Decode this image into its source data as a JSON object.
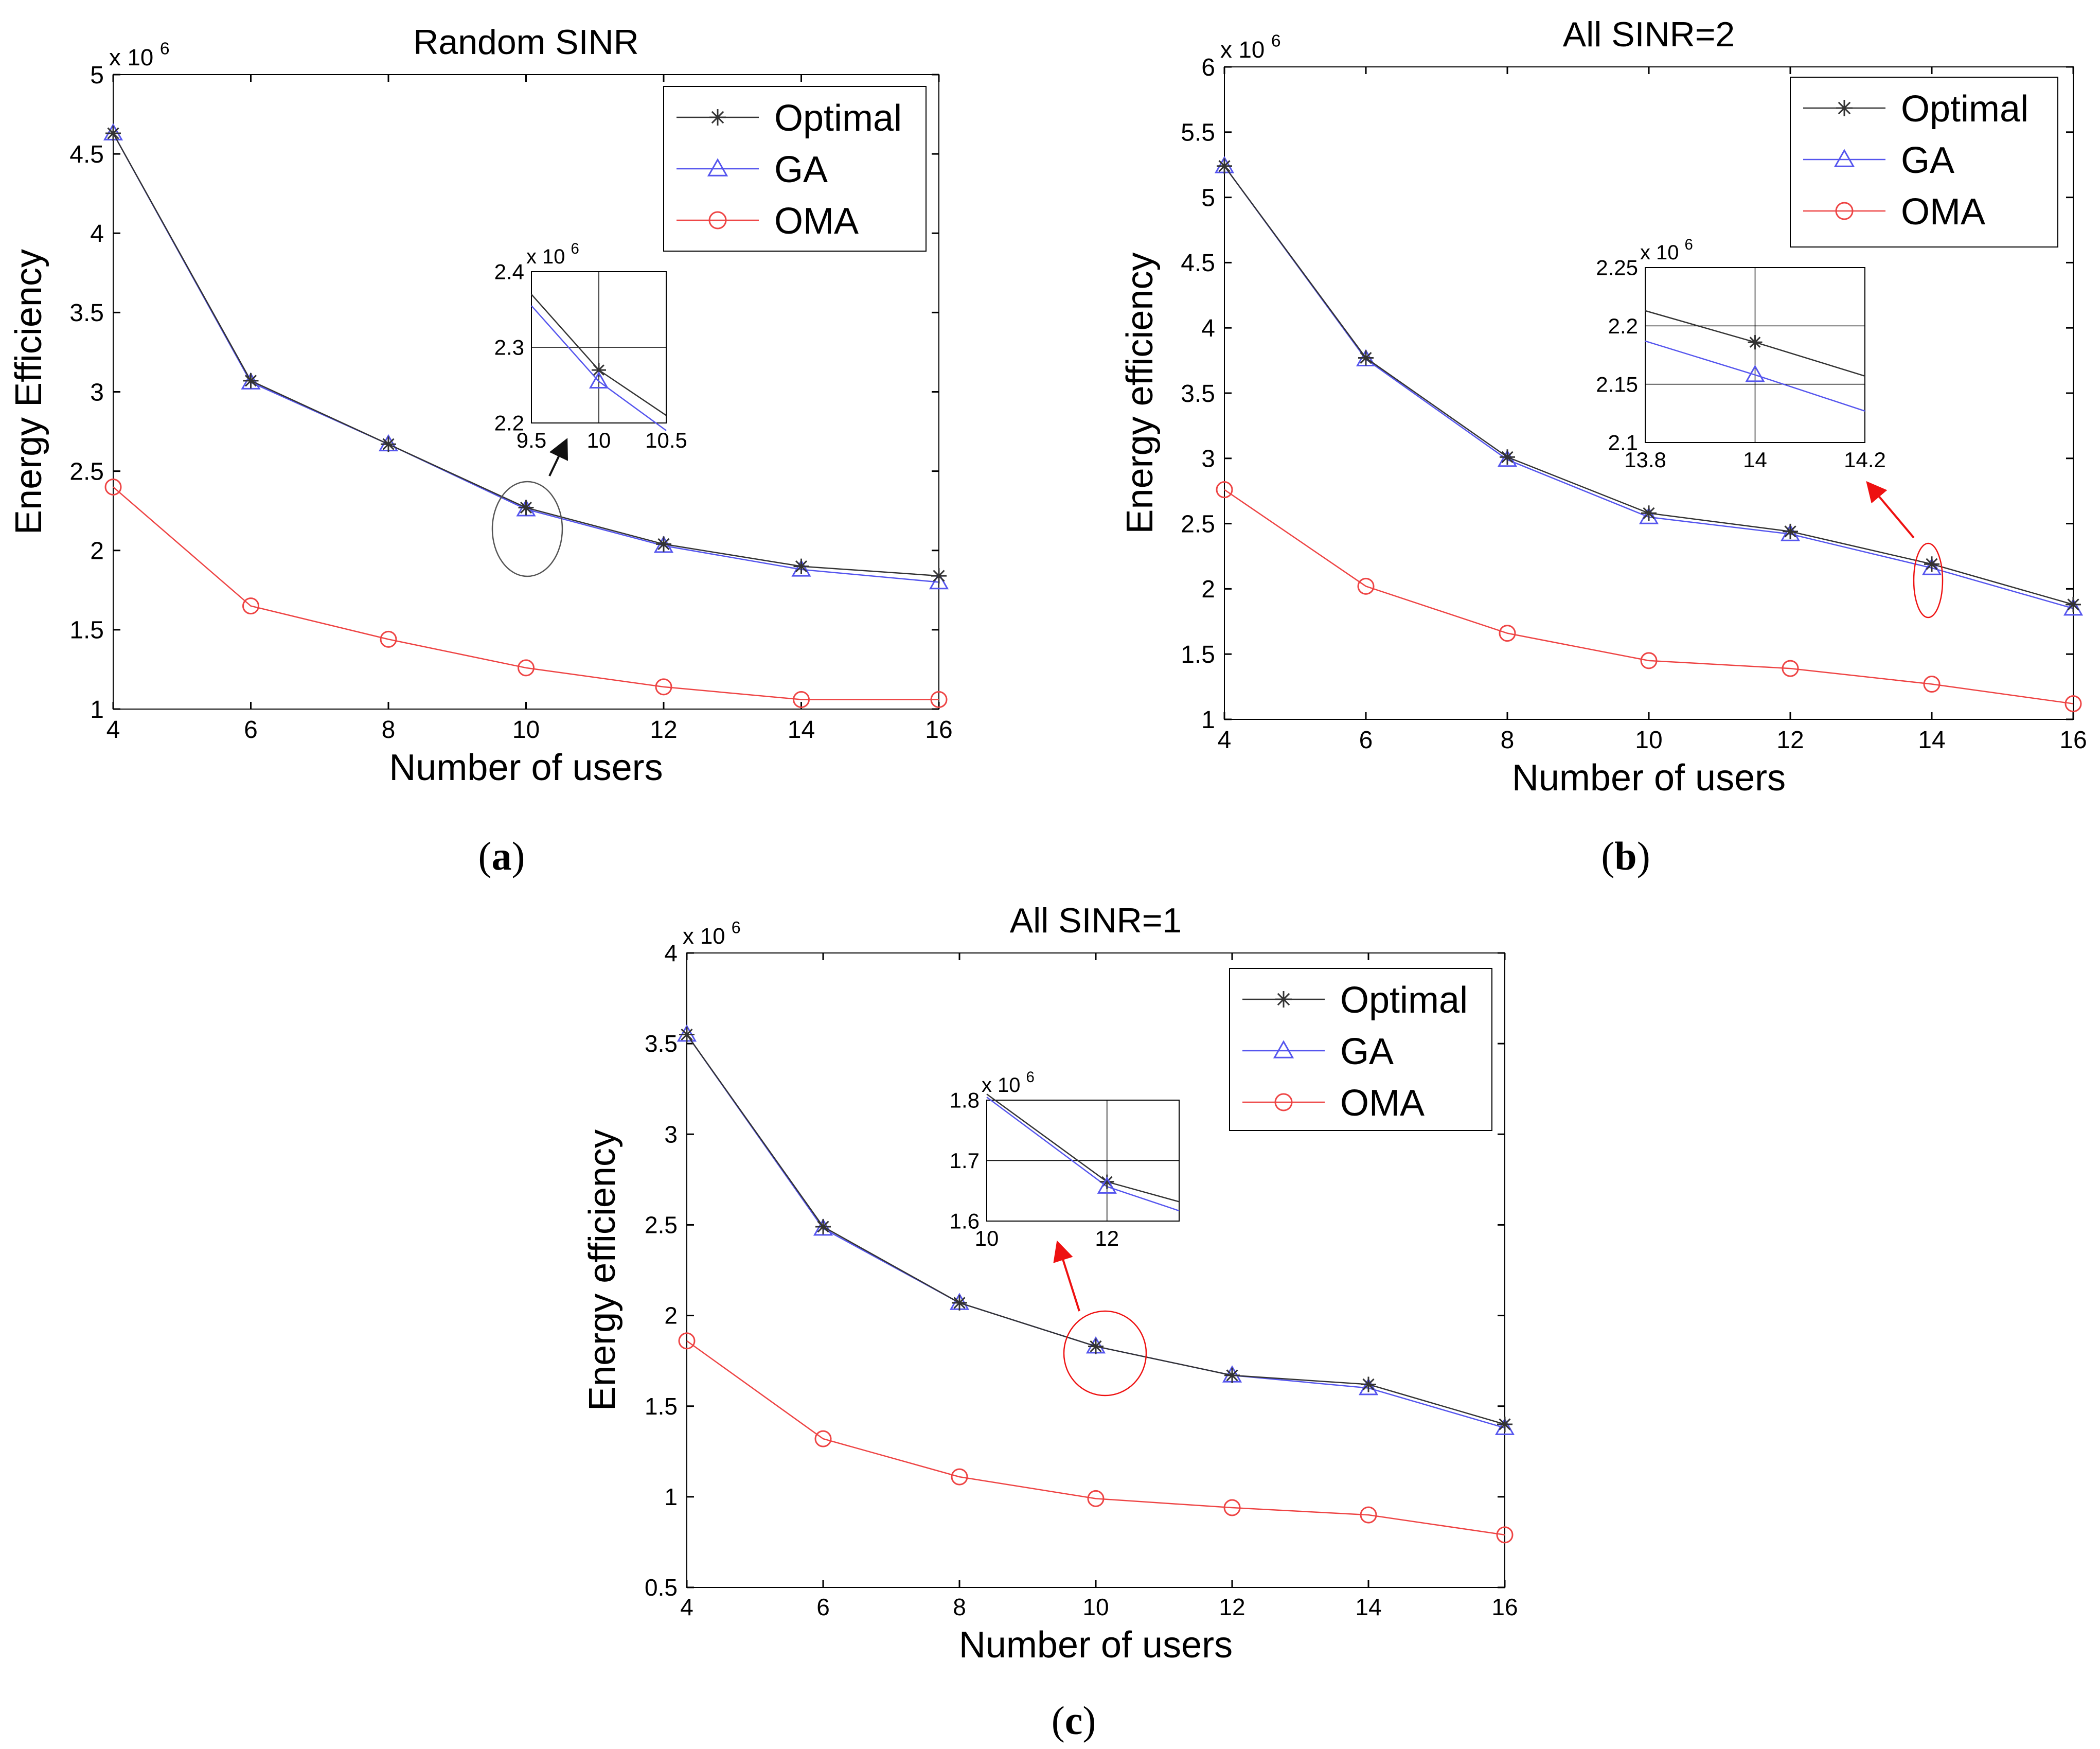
{
  "figure": {
    "captions": [
      "(a)",
      "(b)",
      "(c)"
    ],
    "caption_letters": [
      "a",
      "b",
      "c"
    ]
  },
  "colors": {
    "optimal": "#333333",
    "ga": "#5555ee",
    "oma": "#ee4444",
    "axis": "#000000",
    "arrow_black": "#111111",
    "arrow_red": "#ee1111"
  },
  "chart_data": [
    {
      "type": "line",
      "title": "Random SINR",
      "xlabel": "Number of users",
      "ylabel": "Energy Efficiency",
      "y_exponent_label": "x 10",
      "y_exponent_power": "6",
      "x": [
        4,
        6,
        8,
        10,
        12,
        14,
        16
      ],
      "xlim": [
        4,
        16
      ],
      "ylim": [
        1,
        5
      ],
      "xticks": [
        "4",
        "6",
        "8",
        "10",
        "12",
        "14",
        "16"
      ],
      "yticks": [
        "1",
        "1.5",
        "2",
        "2.5",
        "3",
        "3.5",
        "4",
        "4.5",
        "5"
      ],
      "series": [
        {
          "name": "Optimal",
          "marker": "star",
          "values": [
            4.63,
            3.07,
            2.67,
            2.27,
            2.04,
            1.9,
            1.84
          ]
        },
        {
          "name": "GA",
          "marker": "triangle",
          "values": [
            4.63,
            3.06,
            2.67,
            2.26,
            2.03,
            1.88,
            1.8
          ]
        },
        {
          "name": "OMA",
          "marker": "circle",
          "values": [
            2.4,
            1.65,
            1.44,
            1.26,
            1.14,
            1.06,
            1.06
          ]
        }
      ],
      "legend": [
        "Optimal",
        "GA",
        "OMA"
      ],
      "inset": {
        "xlim": [
          9.5,
          10.5
        ],
        "ylim": [
          2.2,
          2.4
        ],
        "xticks": [
          "9.5",
          "10",
          "10.5"
        ],
        "yticks": [
          "2.2",
          "2.3",
          "2.4"
        ],
        "y_exponent_label": "x 10",
        "y_exponent_power": "6",
        "optimal": [
          [
            9.5,
            2.37
          ],
          [
            10,
            2.27
          ],
          [
            10.5,
            2.21
          ]
        ],
        "ga": [
          [
            9.5,
            2.355
          ],
          [
            10,
            2.255
          ],
          [
            10.5,
            2.19
          ]
        ]
      },
      "callout": {
        "x": 10,
        "y": 2.27,
        "arrow": "black"
      }
    },
    {
      "type": "line",
      "title": "All SINR=2",
      "xlabel": "Number of users",
      "ylabel": "Energy efficiency",
      "y_exponent_label": "x 10",
      "y_exponent_power": "6",
      "x": [
        4,
        6,
        8,
        10,
        12,
        14,
        16
      ],
      "xlim": [
        4,
        16
      ],
      "ylim": [
        1,
        6
      ],
      "xticks": [
        "4",
        "6",
        "8",
        "10",
        "12",
        "14",
        "16"
      ],
      "yticks": [
        "1",
        "1.5",
        "2",
        "2.5",
        "3",
        "3.5",
        "4",
        "4.5",
        "5",
        "5.5",
        "6"
      ],
      "series": [
        {
          "name": "Optimal",
          "marker": "star",
          "values": [
            5.24,
            3.77,
            3.01,
            2.58,
            2.44,
            2.19,
            1.88
          ]
        },
        {
          "name": "GA",
          "marker": "triangle",
          "values": [
            5.24,
            3.76,
            2.99,
            2.55,
            2.42,
            2.16,
            1.85
          ]
        },
        {
          "name": "OMA",
          "marker": "circle",
          "values": [
            2.76,
            2.02,
            1.66,
            1.45,
            1.39,
            1.27,
            1.12
          ]
        }
      ],
      "legend": [
        "Optimal",
        "GA",
        "OMA"
      ],
      "inset": {
        "xlim": [
          13.8,
          14.2
        ],
        "ylim": [
          2.1,
          2.25
        ],
        "xticks": [
          "13.8",
          "14",
          "14.2"
        ],
        "yticks": [
          "2.1",
          "2.15",
          "2.2",
          "2.25"
        ],
        "y_exponent_label": "x 10",
        "y_exponent_power": "6",
        "optimal": [
          [
            13.8,
            2.213
          ],
          [
            14,
            2.186
          ],
          [
            14.2,
            2.157
          ]
        ],
        "ga": [
          [
            13.8,
            2.187
          ],
          [
            14,
            2.158
          ],
          [
            14.2,
            2.127
          ]
        ]
      },
      "callout": {
        "x": 14,
        "y": 2.18,
        "arrow": "red"
      }
    },
    {
      "type": "line",
      "title": "All SINR=1",
      "xlabel": "Number of users",
      "ylabel": "Energy efficiency",
      "y_exponent_label": "x 10",
      "y_exponent_power": "6",
      "x": [
        4,
        6,
        8,
        10,
        12,
        14,
        16
      ],
      "xlim": [
        4,
        16
      ],
      "ylim": [
        0.5,
        4
      ],
      "xticks": [
        "4",
        "6",
        "8",
        "10",
        "12",
        "14",
        "16"
      ],
      "yticks": [
        "0.5",
        "1",
        "1.5",
        "2",
        "2.5",
        "3",
        "3.5",
        "4"
      ],
      "series": [
        {
          "name": "Optimal",
          "marker": "star",
          "values": [
            3.55,
            2.49,
            2.07,
            1.83,
            1.67,
            1.62,
            1.4
          ]
        },
        {
          "name": "GA",
          "marker": "triangle",
          "values": [
            3.55,
            2.48,
            2.07,
            1.83,
            1.67,
            1.6,
            1.38
          ]
        },
        {
          "name": "OMA",
          "marker": "circle",
          "values": [
            1.86,
            1.32,
            1.11,
            0.99,
            0.94,
            0.9,
            0.79
          ]
        }
      ],
      "legend": [
        "Optimal",
        "GA",
        "OMA"
      ],
      "inset": {
        "xlim": [
          10,
          13.2
        ],
        "ylim": [
          1.6,
          1.8
        ],
        "xticks": [
          "10",
          "12"
        ],
        "yticks": [
          "1.6",
          "1.7",
          "1.8"
        ],
        "y_exponent_label": "x 10",
        "y_exponent_power": "6",
        "optimal": [
          [
            10,
            1.81
          ],
          [
            12,
            1.665
          ],
          [
            13.2,
            1.632
          ]
        ],
        "ga": [
          [
            10,
            1.805
          ],
          [
            12,
            1.657
          ],
          [
            13.2,
            1.617
          ]
        ]
      },
      "callout": {
        "x": 10.2,
        "y": 1.8,
        "arrow": "red"
      }
    }
  ]
}
